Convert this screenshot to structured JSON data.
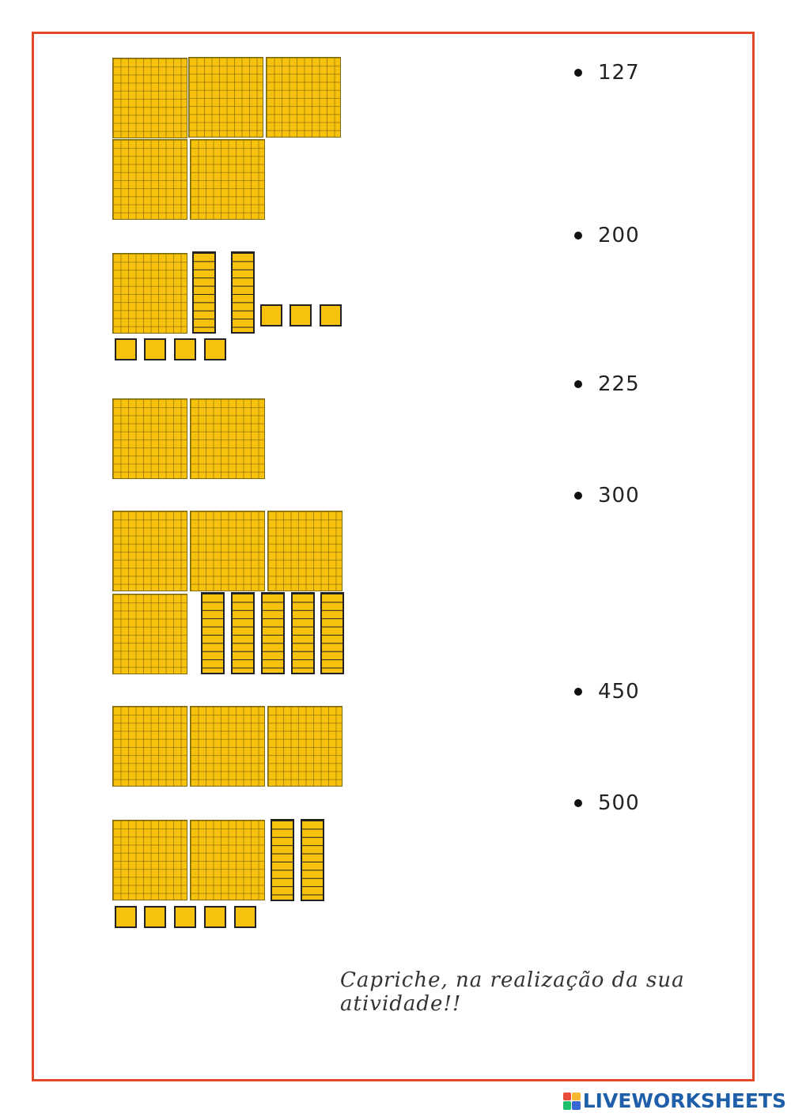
{
  "numbers": [
    "127",
    "200",
    "225",
    "300",
    "450",
    "500"
  ],
  "footer_note": "Capriche, na realização da sua atividade!!",
  "brand": {
    "name": "LIVEWORKSHEETS",
    "logo_letters": "LIVE"
  },
  "colors": {
    "frame": "#e2492b",
    "block_fill": "#f6c20d",
    "brand": "#1f5fa9"
  },
  "block_groups": [
    {
      "hundreds": 5,
      "tens": 0,
      "ones": 0
    },
    {
      "hundreds": 1,
      "tens": 2,
      "ones": 7
    },
    {
      "hundreds": 2,
      "tens": 0,
      "ones": 0
    },
    {
      "hundreds": 4,
      "tens": 5,
      "ones": 0
    },
    {
      "hundreds": 3,
      "tens": 0,
      "ones": 0
    },
    {
      "hundreds": 2,
      "tens": 2,
      "ones": 5
    }
  ]
}
